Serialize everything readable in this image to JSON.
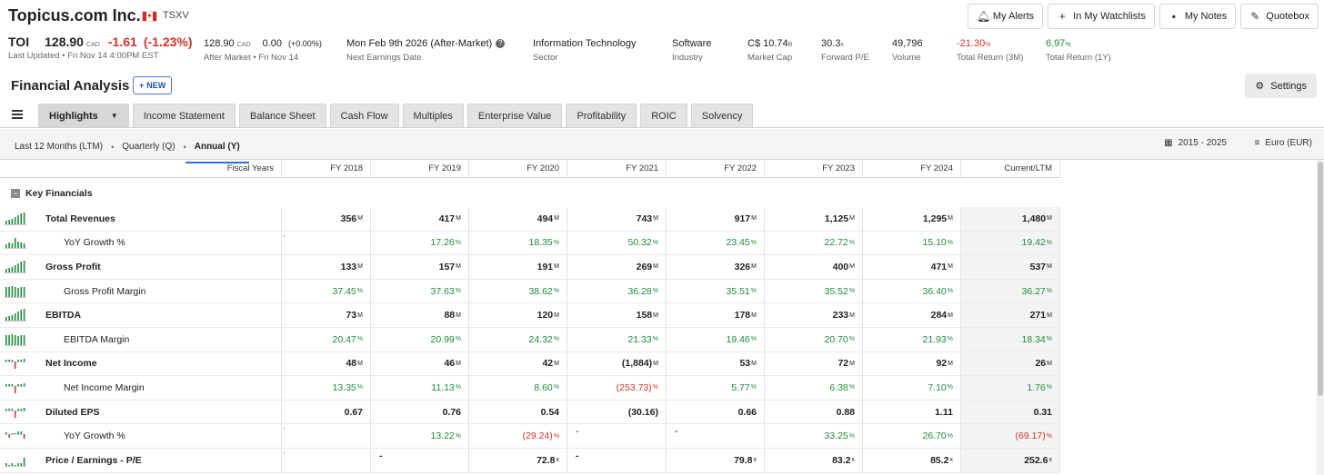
{
  "header": {
    "company": "Topicus.com Inc.",
    "exchange": "TSXV",
    "buttons": [
      "My Alerts",
      "In My Watchlists",
      "My Notes",
      "Quotebox"
    ]
  },
  "quote": {
    "ticker": "TOI",
    "price": "128.90",
    "currency": "CAD",
    "change": "-1.61",
    "change_pct": "(-1.23%)",
    "last_updated": "Last Updated • Fri Nov 14 4:00PM EST",
    "am_price": "128.90",
    "am_currency": "CAD",
    "am_change": "0.00",
    "am_change_pct": "(+0.00%)",
    "am_label": "After Market • Fri Nov 14",
    "earnings_date": "Mon Feb 9th 2026 (After-Market)",
    "earnings_label": "Next Earnings Date",
    "sector": "Information Technology",
    "sector_label": "Sector",
    "industry": "Software",
    "industry_label": "Industry",
    "market_cap": "C$ 10.74",
    "market_cap_unit": "B",
    "market_cap_label": "Market Cap",
    "fpe": "30.3",
    "fpe_unit": "x",
    "fpe_label": "Forward P/E",
    "volume": "49,796",
    "volume_label": "Volume",
    "tr3m": "-21.30",
    "tr3m_unit": "%",
    "tr3m_label": "Total Return (3M)",
    "tr1y": "6.97",
    "tr1y_unit": "%",
    "tr1y_label": "Total Return (1Y)"
  },
  "analysis": {
    "title": "Financial Analysis",
    "new_label": "NEW",
    "settings_label": "Settings"
  },
  "tabs": [
    "Highlights",
    "Income Statement",
    "Balance Sheet",
    "Cash Flow",
    "Multiples",
    "Enterprise Value",
    "Profitability",
    "ROIC",
    "Solvency"
  ],
  "period_tabs": [
    "Last 12 Months (LTM)",
    "Quarterly (Q)",
    "Annual (Y)"
  ],
  "period_active": "Annual (Y)",
  "year_range": "2015 - 2025",
  "currency_label": "Euro (EUR)",
  "table": {
    "fiscal_label": "Fiscal Years",
    "columns": [
      "FY 2018",
      "FY 2019",
      "FY 2020",
      "FY 2021",
      "FY 2022",
      "FY 2023",
      "FY 2024",
      "Current/LTM"
    ],
    "section": "Key Financials",
    "rows": [
      {
        "name": "Total Revenues",
        "bold": true,
        "indent": false,
        "spark": "growth",
        "pre": "",
        "cells": [
          [
            "356",
            "M",
            ""
          ],
          [
            "417",
            "M",
            ""
          ],
          [
            "494",
            "M",
            ""
          ],
          [
            "743",
            "M",
            ""
          ],
          [
            "917",
            "M",
            ""
          ],
          [
            "1,125",
            "M",
            ""
          ],
          [
            "1,295",
            "M",
            ""
          ],
          [
            "1,480",
            "M",
            ""
          ]
        ]
      },
      {
        "name": "YoY Growth %",
        "bold": false,
        "indent": true,
        "spark": "mixed",
        "pre": "'",
        "cells": [
          [
            "",
            "",
            ""
          ],
          [
            "17.26",
            "%",
            "g"
          ],
          [
            "18.35",
            "%",
            "g"
          ],
          [
            "50.32",
            "%",
            "g"
          ],
          [
            "23.45",
            "%",
            "g"
          ],
          [
            "22.72",
            "%",
            "g"
          ],
          [
            "15.10",
            "%",
            "g"
          ],
          [
            "19.42",
            "%",
            "g"
          ]
        ]
      },
      {
        "name": "Gross Profit",
        "bold": true,
        "indent": false,
        "spark": "growth",
        "pre": "",
        "cells": [
          [
            "133",
            "M",
            ""
          ],
          [
            "157",
            "M",
            ""
          ],
          [
            "191",
            "M",
            ""
          ],
          [
            "269",
            "M",
            ""
          ],
          [
            "326",
            "M",
            ""
          ],
          [
            "400",
            "M",
            ""
          ],
          [
            "471",
            "M",
            ""
          ],
          [
            "537",
            "M",
            ""
          ]
        ]
      },
      {
        "name": "Gross Profit Margin",
        "bold": false,
        "indent": true,
        "spark": "flat",
        "pre": "",
        "cells": [
          [
            "37.45",
            "%",
            "g"
          ],
          [
            "37.63",
            "%",
            "g"
          ],
          [
            "38.62",
            "%",
            "g"
          ],
          [
            "36.28",
            "%",
            "g"
          ],
          [
            "35.51",
            "%",
            "g"
          ],
          [
            "35.52",
            "%",
            "g"
          ],
          [
            "36.40",
            "%",
            "g"
          ],
          [
            "36.27",
            "%",
            "g"
          ]
        ]
      },
      {
        "name": "EBITDA",
        "bold": true,
        "indent": false,
        "spark": "growth",
        "pre": "",
        "cells": [
          [
            "73",
            "M",
            ""
          ],
          [
            "88",
            "M",
            ""
          ],
          [
            "120",
            "M",
            ""
          ],
          [
            "158",
            "M",
            ""
          ],
          [
            "178",
            "M",
            ""
          ],
          [
            "233",
            "M",
            ""
          ],
          [
            "284",
            "M",
            ""
          ],
          [
            "271",
            "M",
            ""
          ]
        ]
      },
      {
        "name": "EBITDA Margin",
        "bold": false,
        "indent": true,
        "spark": "flat",
        "pre": "",
        "cells": [
          [
            "20.47",
            "%",
            "g"
          ],
          [
            "20.99",
            "%",
            "g"
          ],
          [
            "24.32",
            "%",
            "g"
          ],
          [
            "21.33",
            "%",
            "g"
          ],
          [
            "19.46",
            "%",
            "g"
          ],
          [
            "20.70",
            "%",
            "g"
          ],
          [
            "21.93",
            "%",
            "g"
          ],
          [
            "18.34",
            "%",
            "g"
          ]
        ]
      },
      {
        "name": "Net Income",
        "bold": true,
        "indent": false,
        "spark": "dip",
        "pre": "",
        "cells": [
          [
            "48",
            "M",
            ""
          ],
          [
            "46",
            "M",
            ""
          ],
          [
            "42",
            "M",
            ""
          ],
          [
            "(1,884)",
            "M",
            ""
          ],
          [
            "53",
            "M",
            ""
          ],
          [
            "72",
            "M",
            ""
          ],
          [
            "92",
            "M",
            ""
          ],
          [
            "26",
            "M",
            ""
          ]
        ]
      },
      {
        "name": "Net Income Margin",
        "bold": false,
        "indent": true,
        "spark": "dip",
        "pre": "",
        "cells": [
          [
            "13.35",
            "%",
            "g"
          ],
          [
            "11.13",
            "%",
            "g"
          ],
          [
            "8.60",
            "%",
            "g"
          ],
          [
            "(253.73)",
            "%",
            "r"
          ],
          [
            "5.77",
            "%",
            "g"
          ],
          [
            "6.38",
            "%",
            "g"
          ],
          [
            "7.10",
            "%",
            "g"
          ],
          [
            "1.76",
            "%",
            "g"
          ]
        ]
      },
      {
        "name": "Diluted EPS",
        "bold": true,
        "indent": false,
        "spark": "dip",
        "pre": "",
        "cells": [
          [
            "0.67",
            "",
            ""
          ],
          [
            "0.76",
            "",
            ""
          ],
          [
            "0.54",
            "",
            ""
          ],
          [
            "(30.16)",
            "",
            ""
          ],
          [
            "0.66",
            "",
            ""
          ],
          [
            "0.88",
            "",
            ""
          ],
          [
            "1.11",
            "",
            ""
          ],
          [
            "0.31",
            "",
            ""
          ]
        ]
      },
      {
        "name": "YoY Growth %",
        "bold": false,
        "indent": true,
        "spark": "mixneg",
        "pre": "'",
        "cells": [
          [
            "",
            "",
            ""
          ],
          [
            "13.22",
            "%",
            "g"
          ],
          [
            "(29.24)",
            "%",
            "r"
          ],
          [
            "-",
            "",
            ""
          ],
          [
            "-",
            "",
            ""
          ],
          [
            "33.25",
            "%",
            "g"
          ],
          [
            "26.70",
            "%",
            "g"
          ],
          [
            "(69.17)",
            "%",
            "r"
          ]
        ]
      },
      {
        "name": "Price / Earnings - P/E",
        "bold": true,
        "indent": false,
        "spark": "pe",
        "pre": "'",
        "cells": [
          [
            "",
            "",
            ""
          ],
          [
            "-",
            "",
            ""
          ],
          [
            "72.8",
            "x",
            ""
          ],
          [
            "-",
            "",
            ""
          ],
          [
            "79.8",
            "x",
            ""
          ],
          [
            "83.2",
            "x",
            ""
          ],
          [
            "85.2",
            "x",
            ""
          ],
          [
            "252.6",
            "x",
            ""
          ]
        ]
      }
    ]
  }
}
